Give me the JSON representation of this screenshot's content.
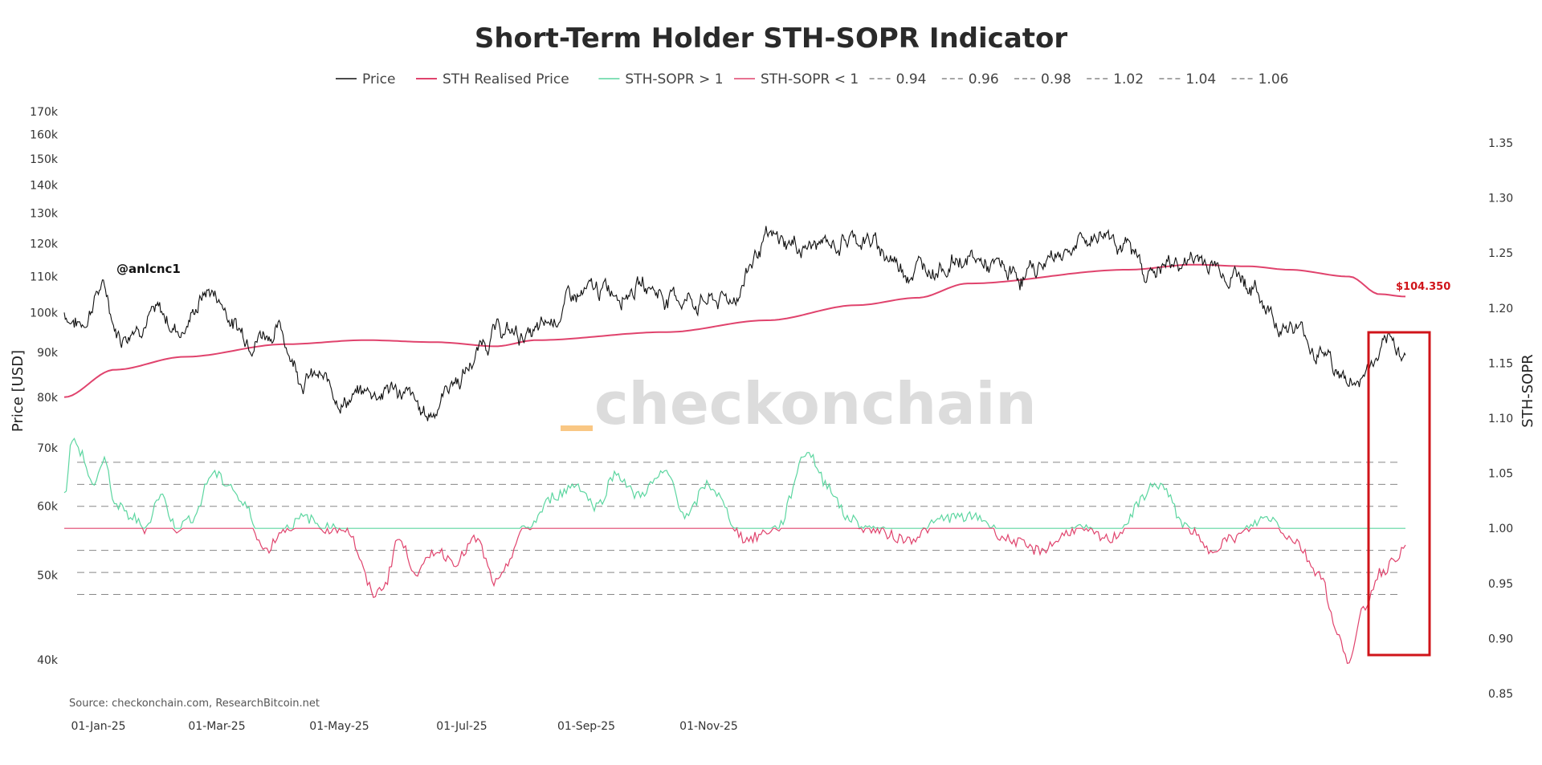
{
  "colors": {
    "price": "#111111",
    "realised": "#e0436d",
    "sopr_up": "#5cd6a0",
    "sopr_down": "#e0436d",
    "band": "#888888",
    "highlight": "#d0141a",
    "watermark_accent": "#f9c784"
  },
  "chart_data": {
    "type": "line",
    "title": "Short-Term Holder STH-SOPR Indicator",
    "legend": [
      "Price",
      "STH Realised Price",
      "STH-SOPR > 1",
      "STH-SOPR < 1",
      "0.94",
      "0.96",
      "0.98",
      "1.02",
      "1.04",
      "1.06"
    ],
    "ylabel_left": "Price [USD]",
    "ylabel_right": "STH-SOPR",
    "yscale_left": "log",
    "ylim_left": [
      36000,
      180000
    ],
    "yticks_left": [
      "40k",
      "50k",
      "60k",
      "70k",
      "80k",
      "90k",
      "100k",
      "110k",
      "120k",
      "130k",
      "140k",
      "150k",
      "160k",
      "170k"
    ],
    "ylim_right": [
      0.85,
      1.37
    ],
    "yticks_right": [
      "0.85",
      "0.90",
      "0.95",
      "1.00",
      "1.05",
      "1.10",
      "1.15",
      "1.20",
      "1.25",
      "1.30",
      "1.35"
    ],
    "xlim": [
      "2024-12-15",
      "2025-12-10"
    ],
    "xticks": [
      "01-Jan-25",
      "01-Mar-25",
      "01-May-25",
      "01-Jul-25",
      "01-Sep-25",
      "01-Nov-25"
    ],
    "sopr_bands": [
      0.94,
      0.96,
      0.98,
      1.02,
      1.04,
      1.06
    ],
    "price_anchors": [
      [
        0,
        100000
      ],
      [
        8,
        97000
      ],
      [
        18,
        107000
      ],
      [
        28,
        95000
      ],
      [
        42,
        100000
      ],
      [
        58,
        96000
      ],
      [
        72,
        106000
      ],
      [
        90,
        95000
      ],
      [
        105,
        96000
      ],
      [
        120,
        85000
      ],
      [
        140,
        80000
      ],
      [
        165,
        82000
      ],
      [
        180,
        76000
      ],
      [
        195,
        84000
      ],
      [
        215,
        95000
      ],
      [
        235,
        94000
      ],
      [
        255,
        104000
      ],
      [
        285,
        108000
      ],
      [
        305,
        104000
      ],
      [
        330,
        103000
      ],
      [
        350,
        120000
      ],
      [
        375,
        119000
      ],
      [
        395,
        122000
      ],
      [
        420,
        113000
      ],
      [
        448,
        115000
      ],
      [
        475,
        110000
      ],
      [
        505,
        120000
      ],
      [
        520,
        124000
      ],
      [
        540,
        112000
      ],
      [
        565,
        115000
      ],
      [
        580,
        112000
      ],
      [
        610,
        97000
      ],
      [
        625,
        91000
      ],
      [
        640,
        83000
      ],
      [
        660,
        90000
      ],
      [
        668,
        91000
      ]
    ],
    "realised_anchors": [
      [
        0,
        80000
      ],
      [
        25,
        86000
      ],
      [
        60,
        89000
      ],
      [
        110,
        92000
      ],
      [
        150,
        93000
      ],
      [
        185,
        92500
      ],
      [
        215,
        91500
      ],
      [
        235,
        93000
      ],
      [
        300,
        95000
      ],
      [
        350,
        98000
      ],
      [
        395,
        102000
      ],
      [
        425,
        104000
      ],
      [
        450,
        108000
      ],
      [
        530,
        112000
      ],
      [
        562,
        113500
      ],
      [
        590,
        113000
      ],
      [
        610,
        112000
      ],
      [
        640,
        110000
      ],
      [
        655,
        105000
      ],
      [
        668,
        104350
      ]
    ],
    "sopr_anchors": [
      [
        0,
        1.03
      ],
      [
        4,
        1.08
      ],
      [
        8,
        1.07
      ],
      [
        14,
        1.04
      ],
      [
        20,
        1.06
      ],
      [
        26,
        1.02
      ],
      [
        34,
        1.01
      ],
      [
        40,
        1.0
      ],
      [
        48,
        1.03
      ],
      [
        56,
        1.0
      ],
      [
        64,
        1.01
      ],
      [
        74,
        1.05
      ],
      [
        82,
        1.04
      ],
      [
        90,
        1.02
      ],
      [
        100,
        0.98
      ],
      [
        110,
        1.0
      ],
      [
        120,
        1.01
      ],
      [
        130,
        1.0
      ],
      [
        140,
        1.0
      ],
      [
        155,
        0.94
      ],
      [
        160,
        0.95
      ],
      [
        166,
        0.99
      ],
      [
        176,
        0.96
      ],
      [
        185,
        0.98
      ],
      [
        195,
        0.97
      ],
      [
        205,
        0.99
      ],
      [
        215,
        0.95
      ],
      [
        230,
        1.0
      ],
      [
        245,
        1.03
      ],
      [
        255,
        1.04
      ],
      [
        265,
        1.02
      ],
      [
        275,
        1.05
      ],
      [
        285,
        1.03
      ],
      [
        300,
        1.05
      ],
      [
        310,
        1.01
      ],
      [
        320,
        1.04
      ],
      [
        340,
        0.99
      ],
      [
        355,
        1.0
      ],
      [
        370,
        1.07
      ],
      [
        380,
        1.04
      ],
      [
        390,
        1.01
      ],
      [
        400,
        1.0
      ],
      [
        420,
        0.99
      ],
      [
        440,
        1.01
      ],
      [
        455,
        1.01
      ],
      [
        470,
        0.99
      ],
      [
        485,
        0.98
      ],
      [
        505,
        1.0
      ],
      [
        520,
        0.99
      ],
      [
        545,
        1.04
      ],
      [
        560,
        1.0
      ],
      [
        570,
        0.98
      ],
      [
        580,
        0.99
      ],
      [
        600,
        1.01
      ],
      [
        612,
        0.99
      ],
      [
        625,
        0.96
      ],
      [
        635,
        0.9
      ],
      [
        640,
        0.88
      ],
      [
        648,
        0.93
      ],
      [
        655,
        0.96
      ],
      [
        668,
        0.98
      ]
    ],
    "annotations": {
      "last_realised_price_label": "$104.350",
      "handle": "@anlcnc1",
      "watermark": "checkonchain",
      "source": "Source: checkonchain.com, ResearchBitcoin.net"
    }
  }
}
